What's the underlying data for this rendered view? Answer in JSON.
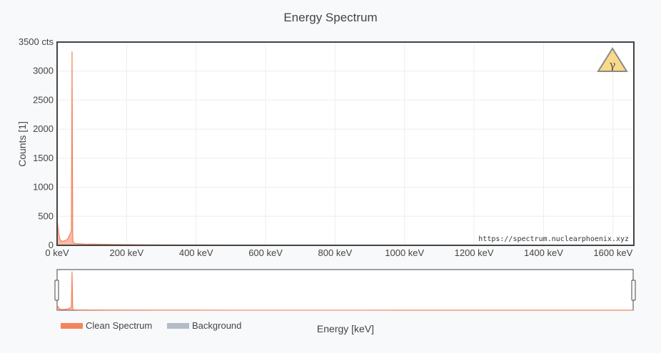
{
  "chart_data": {
    "type": "area",
    "title": "Energy Spectrum",
    "xlabel": "Energy [keV]",
    "ylabel": "Counts [1]",
    "xlim": [
      0,
      1660
    ],
    "ylim": [
      0,
      3500
    ],
    "x_ticks": [
      {
        "value": 0,
        "label": "0 keV"
      },
      {
        "value": 200,
        "label": "200 keV"
      },
      {
        "value": 400,
        "label": "400 keV"
      },
      {
        "value": 600,
        "label": "600 keV"
      },
      {
        "value": 800,
        "label": "800 keV"
      },
      {
        "value": 1000,
        "label": "1000 keV"
      },
      {
        "value": 1200,
        "label": "1200 keV"
      },
      {
        "value": 1400,
        "label": "1400 keV"
      },
      {
        "value": 1600,
        "label": "1600 keV"
      }
    ],
    "y_ticks": [
      {
        "value": 0,
        "label": "0"
      },
      {
        "value": 500,
        "label": "500"
      },
      {
        "value": 1000,
        "label": "1000"
      },
      {
        "value": 1500,
        "label": "1500"
      },
      {
        "value": 2000,
        "label": "2000"
      },
      {
        "value": 2500,
        "label": "2500"
      },
      {
        "value": 3000,
        "label": "3000"
      },
      {
        "value": 3500,
        "label": "3500 cts"
      }
    ],
    "grid": true,
    "legend_position": "bottom-left",
    "series": [
      {
        "name": "Clean Spectrum",
        "color": "#f4845f",
        "x": [
          0,
          1,
          2,
          4,
          6,
          8,
          10,
          12,
          14,
          16,
          18,
          20,
          22,
          24,
          26,
          28,
          30,
          32,
          34,
          36,
          38,
          40,
          41,
          42,
          43,
          44,
          45,
          46,
          47,
          48,
          50,
          55,
          60,
          70,
          80,
          100,
          120,
          150,
          200,
          250,
          300,
          400,
          500,
          600,
          800,
          1000,
          1200,
          1400,
          1600,
          1660
        ],
        "y": [
          440,
          400,
          340,
          240,
          160,
          110,
          85,
          75,
          72,
          70,
          72,
          75,
          80,
          85,
          90,
          95,
          110,
          130,
          150,
          180,
          200,
          230,
          260,
          1600,
          3340,
          1600,
          180,
          60,
          45,
          40,
          35,
          30,
          28,
          25,
          22,
          20,
          18,
          15,
          12,
          10,
          8,
          6,
          5,
          4,
          3,
          2,
          2,
          1,
          1,
          1
        ]
      },
      {
        "name": "Background",
        "color": "#b4bcc8",
        "x": [],
        "y": []
      }
    ]
  },
  "watermark_url": "https://spectrum.nuclearphoenix.xyz",
  "badge_symbol": "γ",
  "colors": {
    "plot_bg": "#ffffff",
    "page_bg": "#f8f9fa",
    "grid": "#eeeeee",
    "badge_fill": "#f9d98a",
    "badge_stroke": "#8a8a8a"
  }
}
